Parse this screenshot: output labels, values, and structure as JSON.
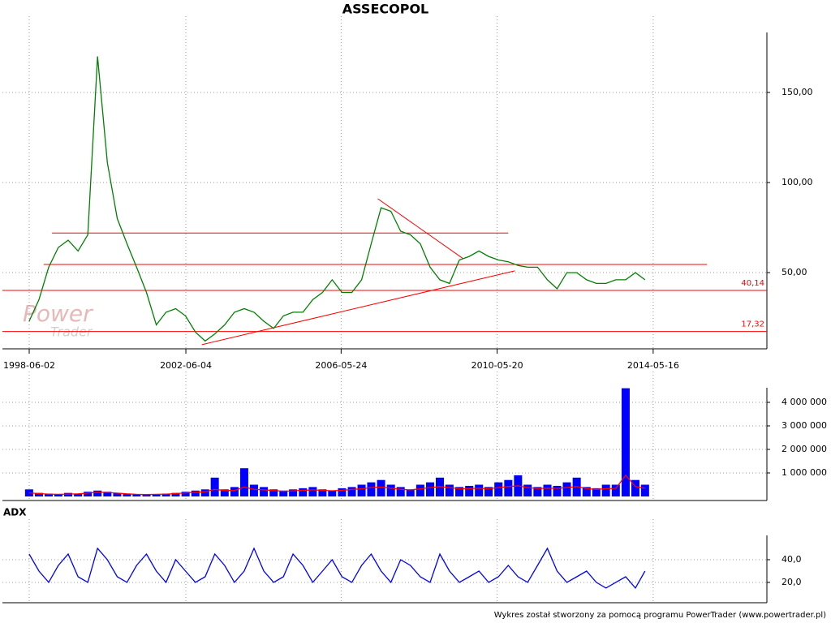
{
  "chart_data": [
    {
      "type": "line",
      "title": "ASSECOPOL",
      "x": [
        "1998-06-01",
        "1998-09-01",
        "1998-12-01",
        "1999-03-01",
        "1999-06-01",
        "1999-09-01",
        "1999-12-01",
        "2000-03-01",
        "2000-06-01",
        "2000-09-01",
        "2000-12-01",
        "2001-03-01",
        "2001-06-01",
        "2001-09-01",
        "2001-12-01",
        "2002-03-01",
        "2002-06-01",
        "2002-09-01",
        "2002-12-01",
        "2003-03-01",
        "2003-06-01",
        "2003-09-01",
        "2003-12-01",
        "2004-03-01",
        "2004-06-01",
        "2004-09-01",
        "2004-12-01",
        "2005-03-01",
        "2005-06-01",
        "2005-09-01",
        "2005-12-01",
        "2006-03-01",
        "2006-06-01",
        "2006-09-01",
        "2006-12-01",
        "2007-03-01",
        "2007-06-01",
        "2007-09-01",
        "2007-12-01",
        "2008-03-01",
        "2008-06-01",
        "2008-09-01",
        "2008-12-01",
        "2009-03-01",
        "2009-06-01",
        "2009-09-01",
        "2009-12-01",
        "2010-03-01",
        "2010-06-01",
        "2010-09-01",
        "2010-12-01",
        "2011-03-01",
        "2011-06-01",
        "2011-09-01",
        "2011-12-01",
        "2012-03-01",
        "2012-06-01",
        "2012-09-01",
        "2012-12-01",
        "2013-03-01",
        "2013-06-01",
        "2013-09-01",
        "2013-12-01",
        "2014-03-01"
      ],
      "series": [
        {
          "color": "#008000",
          "values": [
            23,
            35,
            53,
            64,
            68,
            62,
            71,
            170,
            111,
            80,
            66,
            53,
            39,
            21,
            28,
            30,
            26,
            17,
            12,
            16,
            21,
            28,
            30,
            28,
            23,
            19,
            26,
            28,
            28,
            35,
            39,
            46,
            39,
            39,
            46,
            66,
            86,
            84,
            73,
            71,
            66,
            53,
            46,
            44,
            57,
            59,
            62,
            59,
            57,
            56,
            54,
            53,
            53,
            46,
            41,
            50,
            50,
            46,
            44,
            44,
            46,
            46,
            50,
            46
          ]
        }
      ],
      "xlim": [
        "1997-09-25",
        "2017-04-12"
      ],
      "xticks": [
        "1998-06-02",
        "2002-06-04",
        "2006-05-24",
        "2010-05-20",
        "2014-05-16"
      ],
      "ylim": [
        7.7,
        192.3
      ],
      "yticks": [
        {
          "value": 50,
          "label": "50,00"
        },
        {
          "value": 100,
          "label": "100,00"
        },
        {
          "value": 150,
          "label": "150,00"
        }
      ],
      "grid": true,
      "levels": [
        {
          "value": 40.14,
          "label": "40,14",
          "color": "#ff0000"
        },
        {
          "value": 17.32,
          "label": "17,32",
          "color": "#ff0000"
        }
      ],
      "lines": [
        {
          "x": [
            "1999-01-01",
            "2010-09-01"
          ],
          "y": [
            72,
            72
          ],
          "color": "#ff0000"
        },
        {
          "x": [
            "1998-10-15",
            "2015-10-01"
          ],
          "y": [
            54.5,
            54.5
          ],
          "color": "#ff0000"
        },
        {
          "x": [
            "2002-11-01",
            "2010-11-01"
          ],
          "y": [
            10,
            51
          ],
          "color": "#ff0000"
        },
        {
          "x": [
            "2007-05-01",
            "2009-07-01"
          ],
          "y": [
            91,
            58
          ],
          "color": "#ff0000"
        }
      ]
    },
    {
      "type": "bar",
      "series": [
        {
          "color": "#0000ff",
          "values": [
            300000,
            150000,
            120000,
            100000,
            150000,
            120000,
            200000,
            250000,
            200000,
            150000,
            120000,
            100000,
            80000,
            100000,
            120000,
            150000,
            200000,
            250000,
            300000,
            800000,
            300000,
            400000,
            1200000,
            500000,
            400000,
            300000,
            250000,
            300000,
            350000,
            400000,
            300000,
            250000,
            350000,
            400000,
            500000,
            600000,
            700000,
            500000,
            400000,
            300000,
            500000,
            600000,
            800000,
            500000,
            400000,
            450000,
            500000,
            400000,
            600000,
            700000,
            900000,
            500000,
            400000,
            500000,
            450000,
            600000,
            800000,
            400000,
            350000,
            500000,
            500000,
            4600000,
            700000,
            500000
          ]
        },
        {
          "type": "line",
          "color": "#ff0000",
          "values": [
            150000,
            120000,
            100000,
            90000,
            100000,
            110000,
            140000,
            180000,
            170000,
            140000,
            110000,
            90000,
            80000,
            90000,
            100000,
            120000,
            150000,
            180000,
            200000,
            300000,
            250000,
            250000,
            400000,
            300000,
            280000,
            250000,
            220000,
            240000,
            260000,
            280000,
            260000,
            240000,
            260000,
            300000,
            320000,
            380000,
            400000,
            350000,
            300000,
            280000,
            320000,
            380000,
            420000,
            380000,
            320000,
            330000,
            350000,
            320000,
            380000,
            420000,
            450000,
            380000,
            330000,
            350000,
            340000,
            380000,
            420000,
            330000,
            300000,
            330000,
            340000,
            900000,
            420000,
            350000
          ]
        }
      ],
      "ylim": [
        0,
        5310000
      ],
      "yticks": [
        {
          "value": 1000000,
          "label": "1 000 000"
        },
        {
          "value": 2000000,
          "label": "2 000 000"
        },
        {
          "value": 3000000,
          "label": "3 000 000"
        },
        {
          "value": 4000000,
          "label": "4 000 000"
        }
      ],
      "grid": true
    },
    {
      "type": "line",
      "title": "ADX",
      "series": [
        {
          "color": "#0000ff",
          "values": [
            45,
            30,
            20,
            35,
            45,
            25,
            20,
            50,
            40,
            25,
            20,
            35,
            45,
            30,
            20,
            40,
            30,
            20,
            25,
            45,
            35,
            20,
            30,
            50,
            30,
            20,
            25,
            45,
            35,
            20,
            30,
            40,
            25,
            20,
            35,
            45,
            30,
            20,
            40,
            35,
            25,
            20,
            45,
            30,
            20,
            25,
            30,
            20,
            25,
            35,
            25,
            20,
            35,
            50,
            30,
            20,
            25,
            30,
            20,
            15,
            20,
            25,
            15,
            30
          ]
        }
      ],
      "ylim": [
        2.1,
        75.7
      ],
      "yticks": [
        {
          "value": 20,
          "label": "20,0"
        },
        {
          "value": 40,
          "label": "40,0"
        }
      ],
      "grid": true
    }
  ],
  "watermark": [
    "Power",
    "Trader"
  ],
  "footer": "Wykres został stworzony za pomocą programu PowerTrader (www.powertrader.pl)"
}
